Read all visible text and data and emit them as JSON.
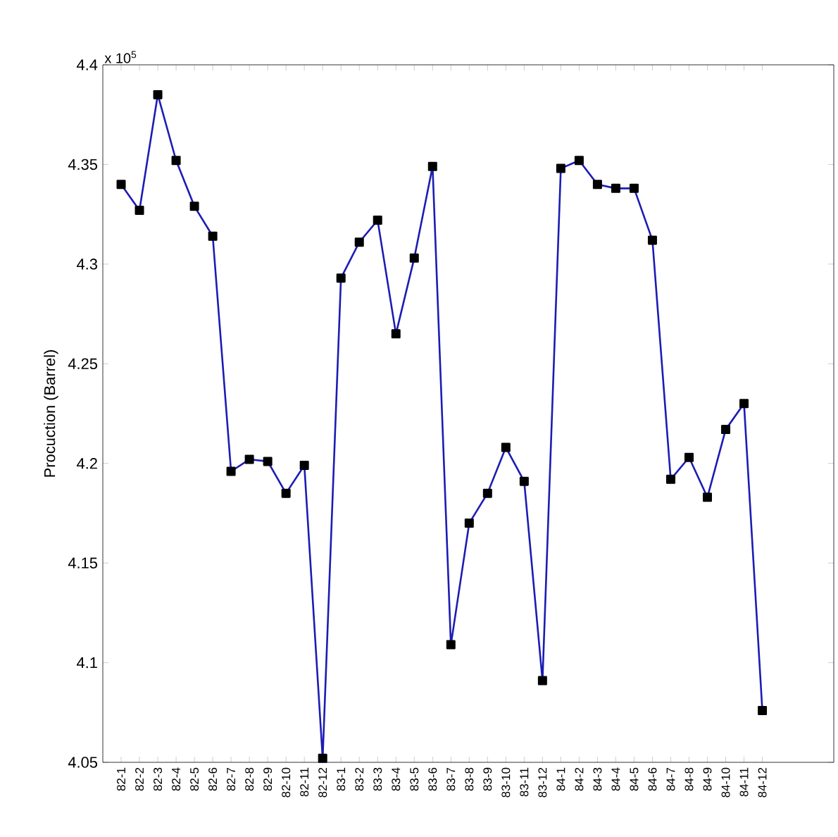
{
  "chart_data": {
    "type": "line",
    "ylabel": "Procuction (Barrel)",
    "annotations": [
      "x 10$^{5}$"
    ],
    "categories": [
      "82-1",
      "82-2",
      "82-3",
      "82-4",
      "82-5",
      "82-6",
      "82-7",
      "82-8",
      "82-9",
      "82-10",
      "82-11",
      "82-12",
      "83-1",
      "83-2",
      "83-3",
      "83-4",
      "83-5",
      "83-6",
      "83-7",
      "83-8",
      "83-9",
      "83-10",
      "83-11",
      "83-12",
      "84-1",
      "84-2",
      "84-3",
      "84-4",
      "84-5",
      "84-6",
      "84-7",
      "84-8",
      "84-9",
      "84-10",
      "84-11",
      "84-12"
    ],
    "series": [
      {
        "color": "#1c1cb4",
        "values": [
          4.34,
          4.327,
          4.385,
          4.352,
          4.329,
          4.314,
          4.196,
          4.202,
          4.201,
          4.185,
          4.199,
          4.052,
          4.293,
          4.311,
          4.322,
          4.265,
          4.303,
          4.349,
          4.109,
          4.17,
          4.185,
          4.208,
          4.191,
          4.091,
          4.348,
          4.352,
          4.34,
          4.338,
          4.338,
          4.312,
          4.192,
          4.203,
          4.183,
          4.217,
          4.23,
          4.076
        ]
      }
    ],
    "ylim": [
      4.05,
      4.4
    ],
    "yticks": [
      4.05,
      4.1,
      4.15,
      4.2,
      4.25,
      4.3,
      4.35,
      4.4
    ],
    "marker": "square",
    "line_style": "solid"
  }
}
